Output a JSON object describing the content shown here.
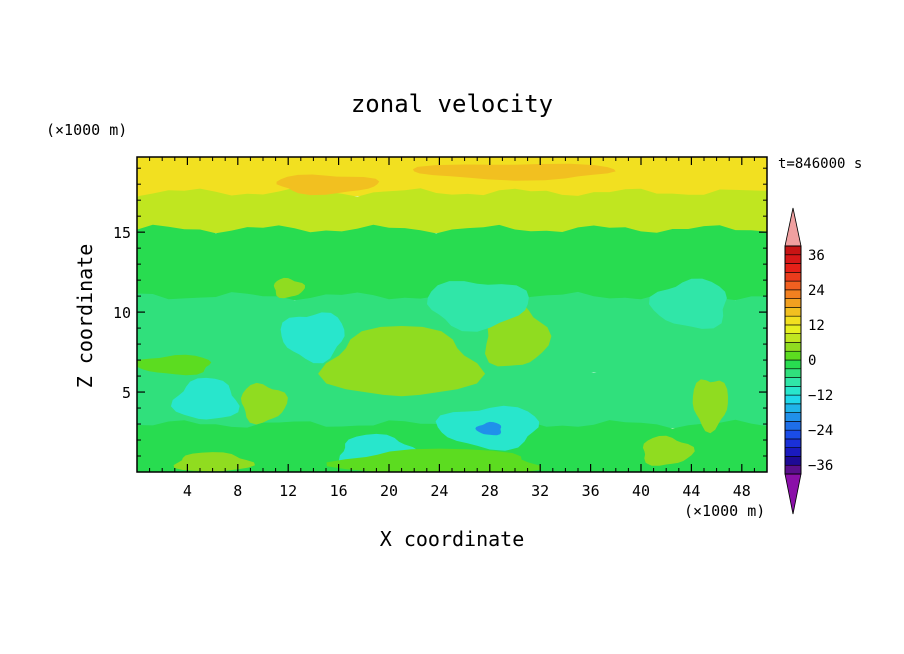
{
  "chart_data": {
    "type": "heatmap",
    "title": "zonal velocity",
    "xlabel": "X coordinate",
    "ylabel": "Z coordinate",
    "x_unit_label": "(×1000 m)",
    "y_unit_label": "(×1000 m)",
    "time_label": "t=846000 s",
    "xlim": [
      0,
      50
    ],
    "ylim": [
      0,
      19.7
    ],
    "x_ticks": [
      4,
      8,
      12,
      16,
      20,
      24,
      28,
      32,
      36,
      40,
      44,
      48
    ],
    "y_ticks": [
      5,
      10,
      15
    ],
    "colorbar": {
      "levels": [
        -39,
        -36,
        -33,
        -30,
        -27,
        -24,
        -21,
        -18,
        -15,
        -12,
        -9,
        -6,
        -3,
        0,
        3,
        6,
        9,
        12,
        15,
        18,
        21,
        24,
        27,
        30,
        33,
        36,
        39
      ],
      "colors": [
        "#5a0f8c",
        "#1e0a96",
        "#1a1abf",
        "#1a30d8",
        "#1a4ce8",
        "#1e6ee8",
        "#2090ea",
        "#20b4ea",
        "#20d8ea",
        "#28e6cc",
        "#30e6a8",
        "#30e07c",
        "#28dc50",
        "#5cdc20",
        "#90dc20",
        "#c0e620",
        "#e6f020",
        "#f2e020",
        "#f2c020",
        "#f2a020",
        "#f28020",
        "#f26020",
        "#ea3c1c",
        "#e62018",
        "#d81818",
        "#c81414"
      ],
      "over_color": "#f0a0a0",
      "under_color": "#8a10a8",
      "tick_labels": [
        "36",
        "24",
        "12",
        "0",
        "−12",
        "−24",
        "−36"
      ],
      "tick_values": [
        36,
        24,
        12,
        0,
        -12,
        -24,
        -36
      ]
    },
    "field_description": "contour-filled zonal velocity field (values estimated)",
    "layers": [
      {
        "z_range": [
          17.5,
          19.7
        ],
        "value": 14
      },
      {
        "z_range": [
          15.2,
          17.5
        ],
        "value": 8
      },
      {
        "z_range": [
          11.0,
          15.2
        ],
        "value": -2
      },
      {
        "z_range": [
          6.5,
          11.0
        ],
        "value": -5
      },
      {
        "z_range": [
          3.0,
          6.5
        ],
        "value": -4
      },
      {
        "z_range": [
          0.0,
          3.0
        ],
        "value": -3
      }
    ],
    "features": [
      {
        "x": 21,
        "z": 6.8,
        "rx": 6,
        "rz": 2.2,
        "value": 4
      },
      {
        "x": 30,
        "z": 8.5,
        "rx": 2.5,
        "rz": 2,
        "value": 3
      },
      {
        "x": 10,
        "z": 4.3,
        "rx": 1.8,
        "rz": 1.2,
        "value": 4
      },
      {
        "x": 45.5,
        "z": 4.3,
        "rx": 1.4,
        "rz": 1.6,
        "value": 5
      },
      {
        "x": 28,
        "z": 2.8,
        "rx": 4,
        "rz": 1.3,
        "value": -12
      },
      {
        "x": 28,
        "z": 2.7,
        "rx": 1,
        "rz": 0.4,
        "value": -20
      },
      {
        "x": 5.5,
        "z": 4.5,
        "rx": 2.5,
        "rz": 1.3,
        "value": -10
      },
      {
        "x": 19,
        "z": 1.3,
        "rx": 3,
        "rz": 1,
        "value": -12
      },
      {
        "x": 12,
        "z": 11.5,
        "rx": 1.2,
        "rz": 0.6,
        "value": 3
      },
      {
        "x": 27,
        "z": 10.5,
        "rx": 4,
        "rz": 1.5,
        "value": -9
      },
      {
        "x": 14,
        "z": 8.5,
        "rx": 2.5,
        "rz": 1.5,
        "value": -10
      },
      {
        "x": 44,
        "z": 10.5,
        "rx": 3,
        "rz": 1.5,
        "value": -8
      },
      {
        "x": 24,
        "z": 0.6,
        "rx": 8,
        "rz": 0.8,
        "value": 2
      },
      {
        "x": 6,
        "z": 0.6,
        "rx": 3,
        "rz": 0.6,
        "value": 3
      },
      {
        "x": 42,
        "z": 1.3,
        "rx": 2,
        "rz": 0.9,
        "value": 3
      },
      {
        "x": 15,
        "z": 18.0,
        "rx": 4,
        "rz": 0.6,
        "value": 17
      },
      {
        "x": 30,
        "z": 18.8,
        "rx": 8,
        "rz": 0.5,
        "value": 16
      },
      {
        "x": 3,
        "z": 6.7,
        "rx": 3,
        "rz": 0.6,
        "value": 2
      }
    ]
  }
}
